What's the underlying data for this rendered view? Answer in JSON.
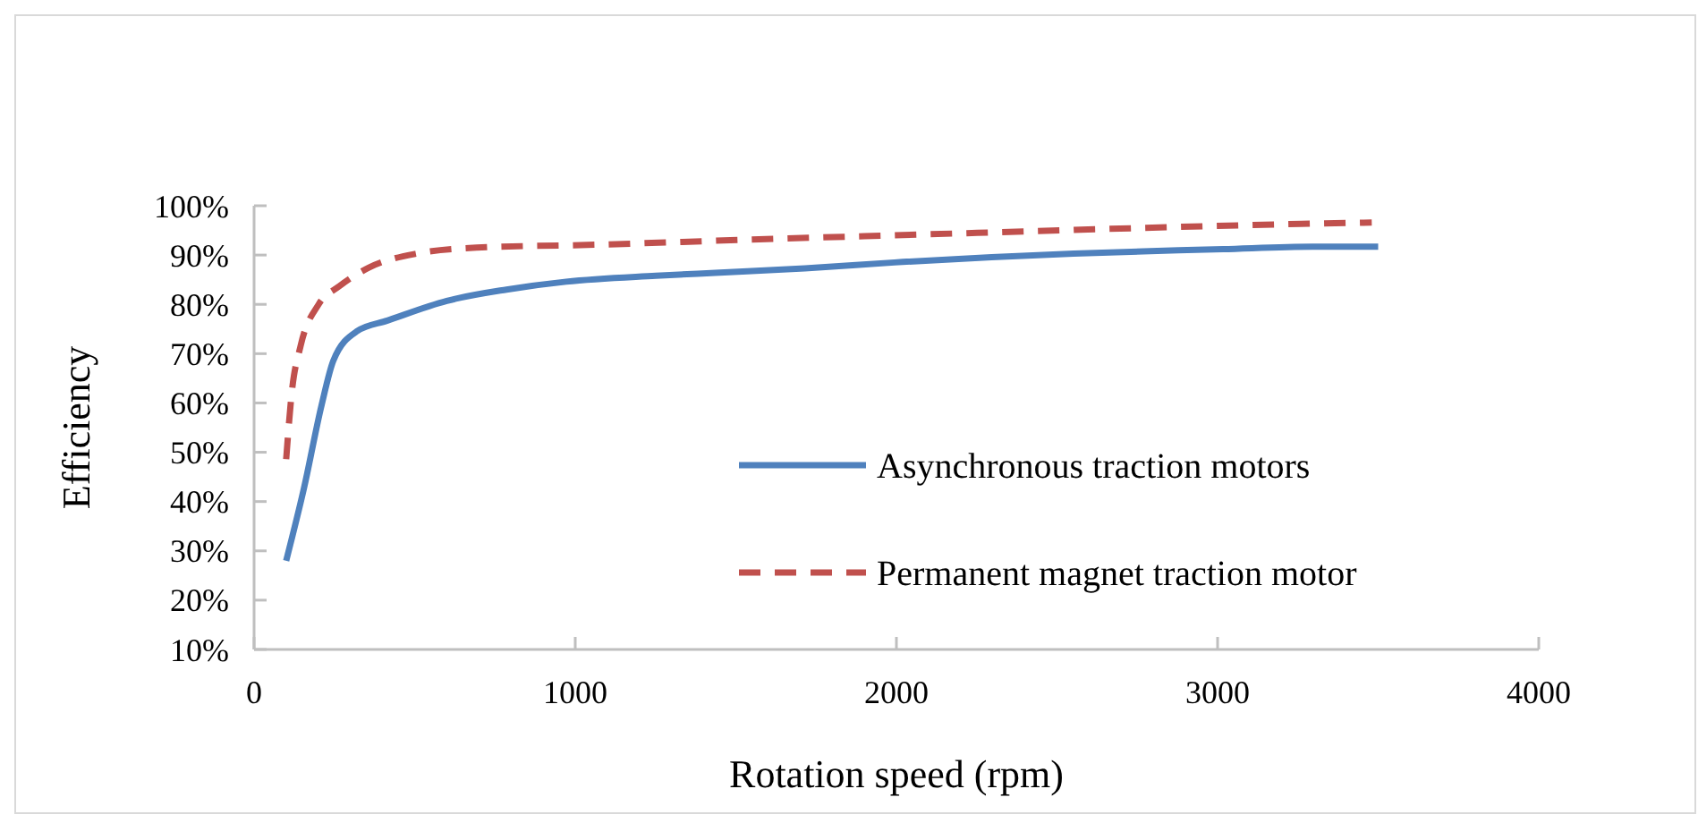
{
  "chart_data": {
    "type": "line",
    "xlabel": "Rotation speed (rpm)",
    "ylabel": "Efficiency",
    "xlim": [
      0,
      4000
    ],
    "xticks": [
      0,
      1000,
      2000,
      3000,
      4000
    ],
    "ylim": [
      10,
      100
    ],
    "yticks": [
      {
        "value": 10,
        "label": "10%"
      },
      {
        "value": 20,
        "label": "20%"
      },
      {
        "value": 30,
        "label": "30%"
      },
      {
        "value": 40,
        "label": "40%"
      },
      {
        "value": 50,
        "label": "50%"
      },
      {
        "value": 60,
        "label": "60%"
      },
      {
        "value": 70,
        "label": "70%"
      },
      {
        "value": 80,
        "label": "80%"
      },
      {
        "value": 90,
        "label": "90%"
      },
      {
        "value": 100,
        "label": "100%"
      }
    ],
    "grid": false,
    "legend": "right",
    "marker": "none",
    "series": [
      {
        "name": "Asynchronous traction motors",
        "color": "#4f81bd",
        "line_style": "solid",
        "x": [
          100,
          155,
          210,
          247,
          322,
          415,
          600,
          786,
          972,
          1251,
          1436,
          1715,
          1994,
          2552,
          3017,
          3295,
          3500
        ],
        "values": [
          28,
          42.6,
          59.5,
          68.6,
          74.6,
          76.7,
          80.7,
          83,
          84.6,
          85.8,
          86.4,
          87.3,
          88.5,
          90.3,
          91.2,
          91.7,
          91.7
        ]
      },
      {
        "name": "Permanent magnet traction motor",
        "color": "#c0504d",
        "line_style": "dashed",
        "x": [
          100,
          117,
          145,
          201,
          266,
          359,
          507,
          693,
          1065,
          1622,
          1994,
          2552,
          3110,
          3480
        ],
        "values": [
          48.6,
          61.9,
          71.6,
          80,
          83.7,
          87.5,
          90.3,
          91.5,
          92.1,
          93.3,
          94,
          95.1,
          96.1,
          96.6
        ]
      }
    ]
  }
}
